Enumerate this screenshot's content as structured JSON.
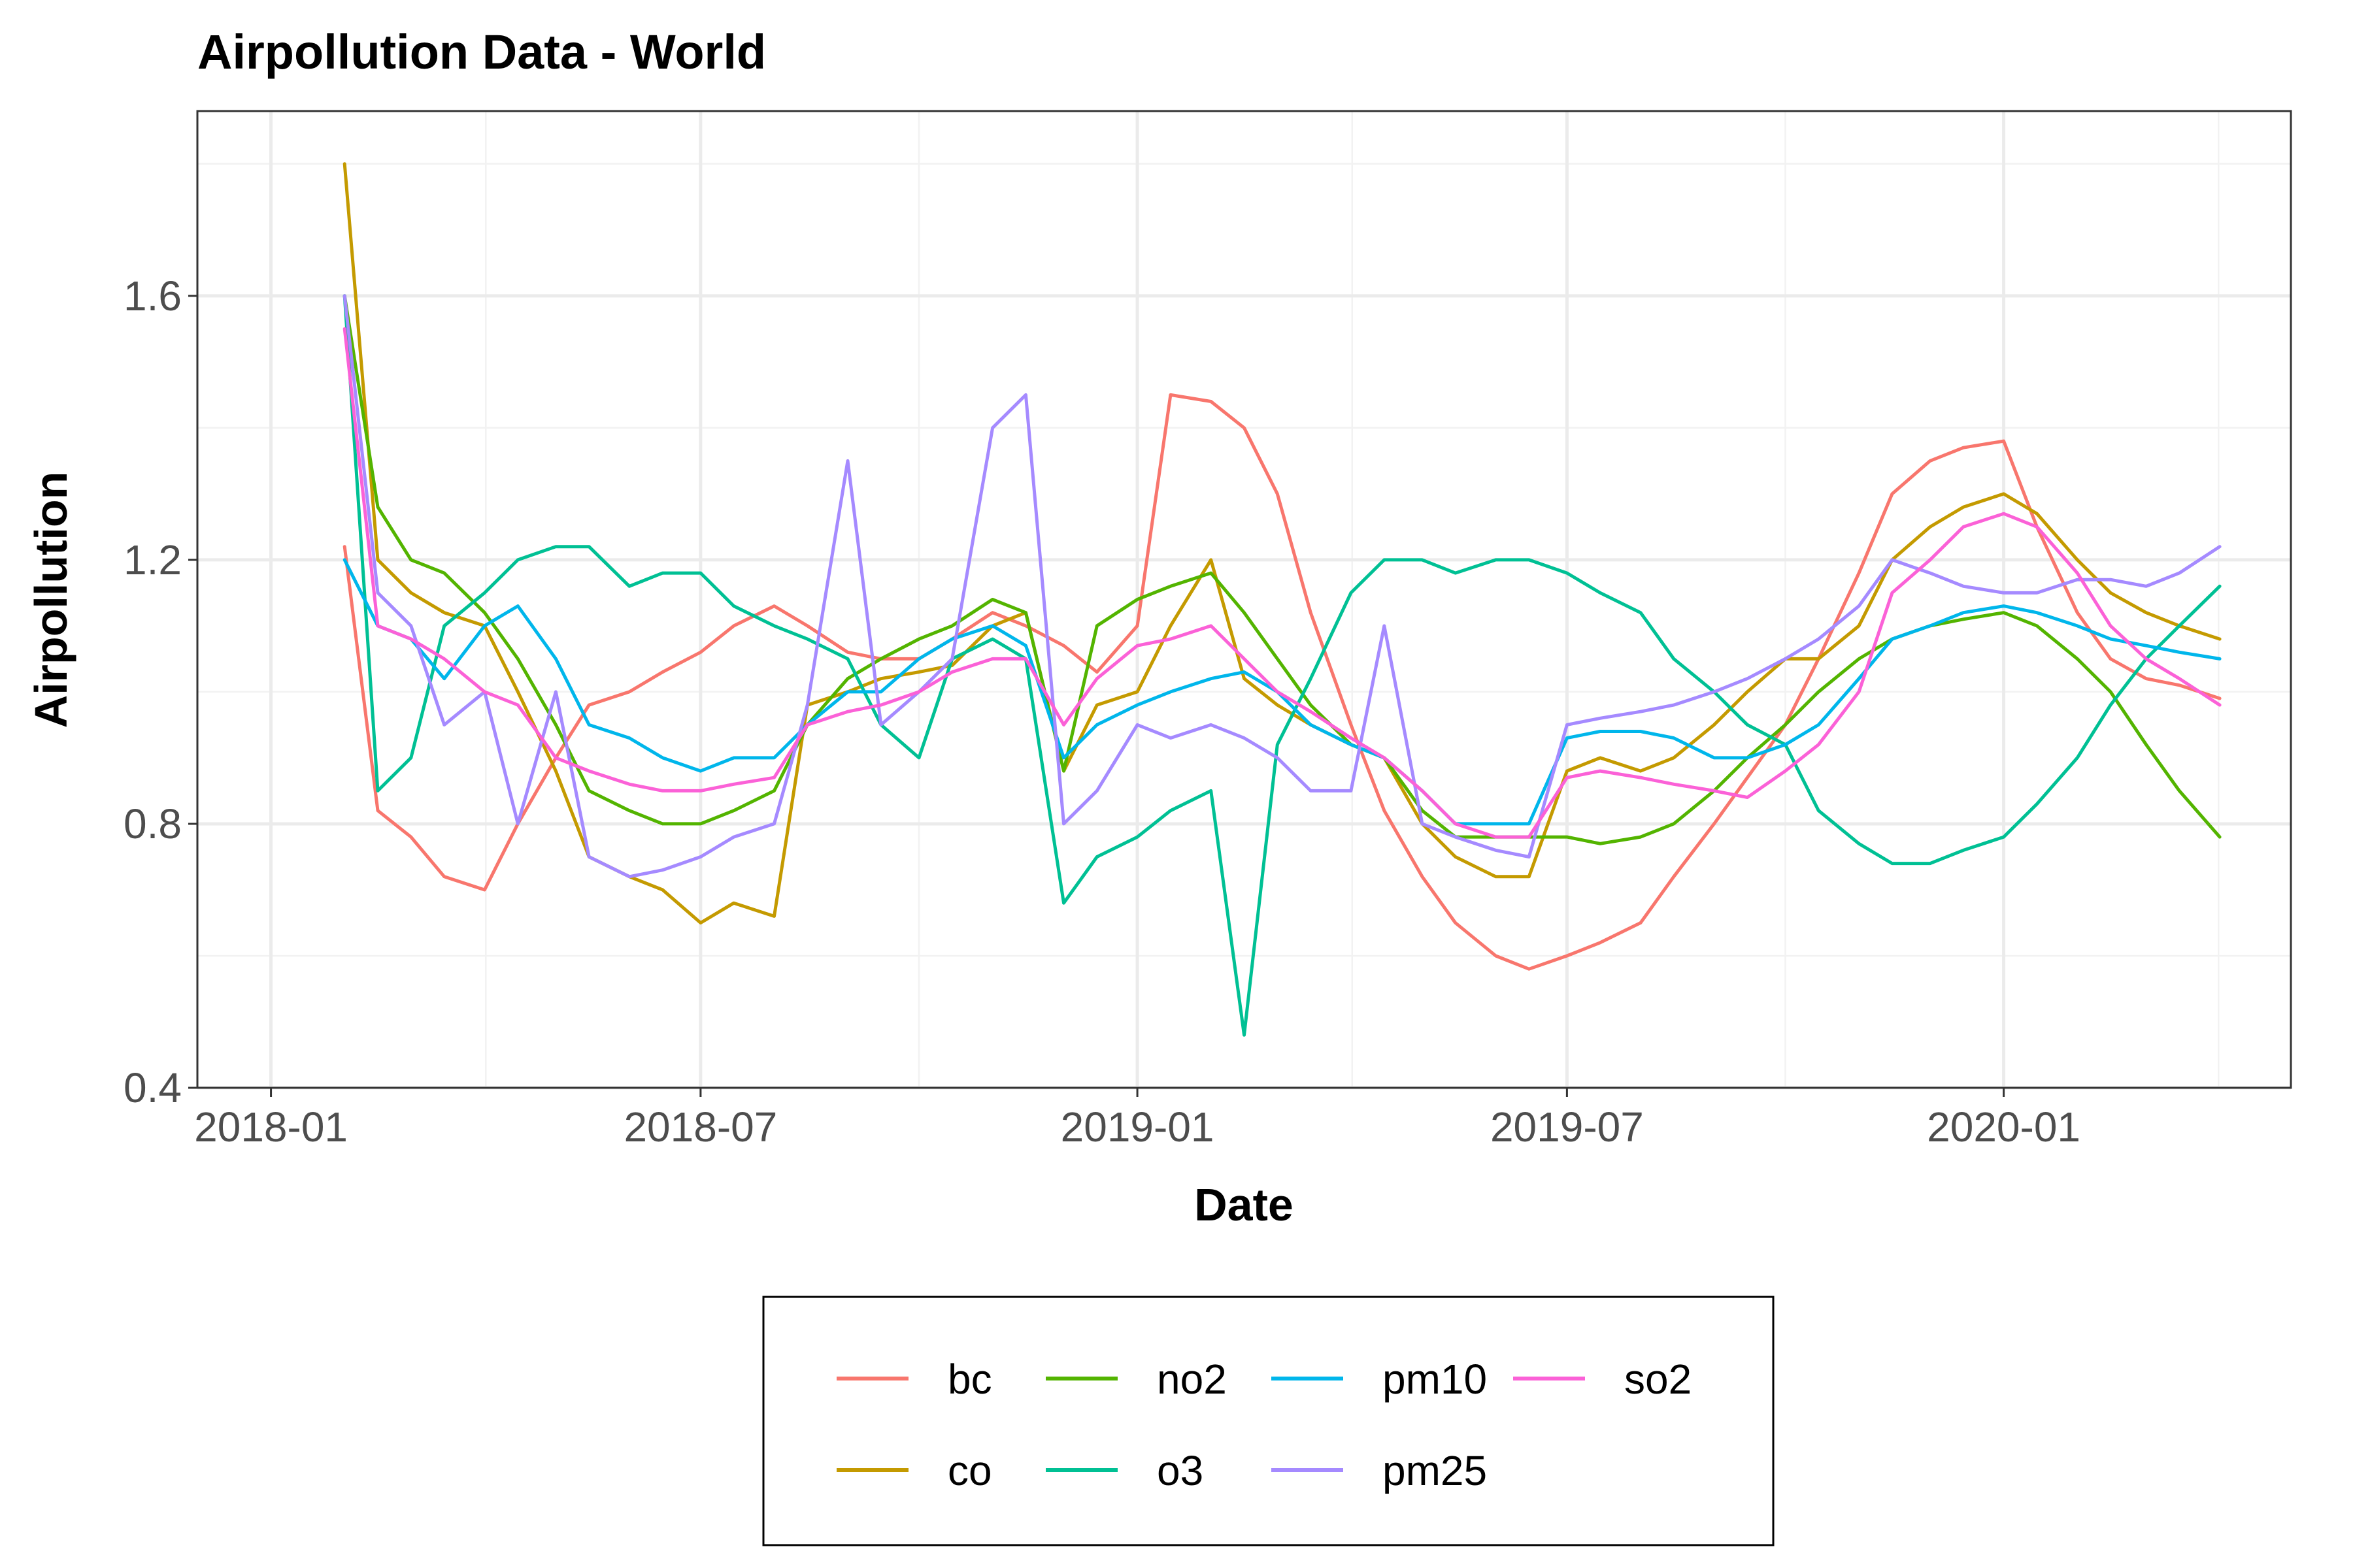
{
  "chart_data": {
    "type": "line",
    "title": "Airpollution Data - World",
    "xlabel": "Date",
    "ylabel": "Airpollution",
    "x_ticks": [
      "2018-01",
      "2018-07",
      "2019-01",
      "2019-07",
      "2020-01"
    ],
    "y_ticks": [
      "0.4",
      "0.8",
      "1.2",
      "1.6"
    ],
    "xlim": [
      "2017-12-01",
      "2020-05-01"
    ],
    "ylim": [
      0.4,
      1.88
    ],
    "grid": true,
    "legend_position": "bottom",
    "x": [
      "2018-02-01",
      "2018-02-15",
      "2018-03-01",
      "2018-03-15",
      "2018-04-01",
      "2018-04-15",
      "2018-05-01",
      "2018-05-15",
      "2018-06-01",
      "2018-06-15",
      "2018-07-01",
      "2018-07-15",
      "2018-08-01",
      "2018-08-15",
      "2018-09-01",
      "2018-09-15",
      "2018-10-01",
      "2018-10-15",
      "2018-11-01",
      "2018-11-15",
      "2018-12-01",
      "2018-12-15",
      "2019-01-01",
      "2019-01-15",
      "2019-02-01",
      "2019-02-15",
      "2019-03-01",
      "2019-03-15",
      "2019-04-01",
      "2019-04-15",
      "2019-05-01",
      "2019-05-15",
      "2019-06-01",
      "2019-06-15",
      "2019-07-01",
      "2019-07-15",
      "2019-08-01",
      "2019-08-15",
      "2019-09-01",
      "2019-09-15",
      "2019-10-01",
      "2019-10-15",
      "2019-11-01",
      "2019-11-15",
      "2019-12-01",
      "2019-12-15",
      "2020-01-01",
      "2020-01-15",
      "2020-02-01",
      "2020-02-15",
      "2020-03-01",
      "2020-03-15",
      "2020-04-01"
    ],
    "series": [
      {
        "name": "bc",
        "color": "#F8766D",
        "values": [
          1.22,
          0.82,
          0.78,
          0.72,
          0.7,
          0.8,
          0.9,
          0.98,
          1.0,
          1.03,
          1.06,
          1.1,
          1.13,
          1.1,
          1.06,
          1.05,
          1.05,
          1.08,
          1.12,
          1.1,
          1.07,
          1.03,
          1.1,
          1.45,
          1.44,
          1.4,
          1.3,
          1.12,
          0.95,
          0.82,
          0.72,
          0.65,
          0.6,
          0.58,
          0.6,
          0.62,
          0.65,
          0.72,
          0.8,
          0.87,
          0.95,
          1.05,
          1.18,
          1.3,
          1.35,
          1.37,
          1.38,
          1.25,
          1.12,
          1.05,
          1.02,
          1.01,
          0.99
        ]
      },
      {
        "name": "co",
        "color": "#C49A00",
        "values": [
          1.8,
          1.2,
          1.15,
          1.12,
          1.1,
          1.0,
          0.88,
          0.75,
          0.72,
          0.7,
          0.65,
          0.68,
          0.66,
          0.98,
          1.0,
          1.02,
          1.03,
          1.04,
          1.1,
          1.12,
          0.88,
          0.98,
          1.0,
          1.1,
          1.2,
          1.02,
          0.98,
          0.95,
          0.92,
          0.9,
          0.8,
          0.75,
          0.72,
          0.72,
          0.88,
          0.9,
          0.88,
          0.9,
          0.95,
          1.0,
          1.05,
          1.05,
          1.1,
          1.2,
          1.25,
          1.28,
          1.3,
          1.27,
          1.2,
          1.15,
          1.12,
          1.1,
          1.08
        ]
      },
      {
        "name": "no2",
        "color": "#53B400",
        "values": [
          1.6,
          1.28,
          1.2,
          1.18,
          1.12,
          1.05,
          0.95,
          0.85,
          0.82,
          0.8,
          0.8,
          0.82,
          0.85,
          0.95,
          1.02,
          1.05,
          1.08,
          1.1,
          1.14,
          1.12,
          0.88,
          1.1,
          1.14,
          1.16,
          1.18,
          1.12,
          1.05,
          0.98,
          0.92,
          0.9,
          0.82,
          0.78,
          0.78,
          0.78,
          0.78,
          0.77,
          0.78,
          0.8,
          0.85,
          0.9,
          0.95,
          1.0,
          1.05,
          1.08,
          1.1,
          1.11,
          1.12,
          1.1,
          1.05,
          1.0,
          0.92,
          0.85,
          0.78
        ]
      },
      {
        "name": "o3",
        "color": "#00C094",
        "values": [
          1.6,
          0.85,
          0.9,
          1.1,
          1.15,
          1.2,
          1.22,
          1.22,
          1.16,
          1.18,
          1.18,
          1.13,
          1.1,
          1.08,
          1.05,
          0.95,
          0.9,
          1.05,
          1.08,
          1.05,
          0.68,
          0.75,
          0.78,
          0.82,
          0.85,
          0.48,
          0.92,
          1.02,
          1.15,
          1.2,
          1.2,
          1.18,
          1.2,
          1.2,
          1.18,
          1.15,
          1.12,
          1.05,
          1.0,
          0.95,
          0.92,
          0.82,
          0.77,
          0.74,
          0.74,
          0.76,
          0.78,
          0.83,
          0.9,
          0.98,
          1.05,
          1.1,
          1.16
        ]
      },
      {
        "name": "pm10",
        "color": "#00B6EB",
        "values": [
          1.2,
          1.1,
          1.08,
          1.02,
          1.1,
          1.13,
          1.05,
          0.95,
          0.93,
          0.9,
          0.88,
          0.9,
          0.9,
          0.95,
          1.0,
          1.0,
          1.05,
          1.08,
          1.1,
          1.07,
          0.9,
          0.95,
          0.98,
          1.0,
          1.02,
          1.03,
          1.0,
          0.95,
          0.92,
          0.9,
          0.85,
          0.8,
          0.8,
          0.8,
          0.93,
          0.94,
          0.94,
          0.93,
          0.9,
          0.9,
          0.92,
          0.95,
          1.02,
          1.08,
          1.1,
          1.12,
          1.13,
          1.12,
          1.1,
          1.08,
          1.07,
          1.06,
          1.05
        ]
      },
      {
        "name": "pm25",
        "color": "#A58AFF",
        "values": [
          1.6,
          1.15,
          1.1,
          0.95,
          1.0,
          0.8,
          1.0,
          0.75,
          0.72,
          0.73,
          0.75,
          0.78,
          0.8,
          0.98,
          1.35,
          0.95,
          1.0,
          1.05,
          1.4,
          1.45,
          0.8,
          0.85,
          0.95,
          0.93,
          0.95,
          0.93,
          0.9,
          0.85,
          0.85,
          1.1,
          0.8,
          0.78,
          0.76,
          0.75,
          0.95,
          0.96,
          0.97,
          0.98,
          1.0,
          1.02,
          1.05,
          1.08,
          1.13,
          1.2,
          1.18,
          1.16,
          1.15,
          1.15,
          1.17,
          1.17,
          1.16,
          1.18,
          1.22
        ]
      },
      {
        "name": "so2",
        "color": "#FB61D7",
        "values": [
          1.55,
          1.1,
          1.08,
          1.05,
          1.0,
          0.98,
          0.9,
          0.88,
          0.86,
          0.85,
          0.85,
          0.86,
          0.87,
          0.95,
          0.97,
          0.98,
          1.0,
          1.03,
          1.05,
          1.05,
          0.95,
          1.02,
          1.07,
          1.08,
          1.1,
          1.05,
          1.0,
          0.97,
          0.93,
          0.9,
          0.85,
          0.8,
          0.78,
          0.78,
          0.87,
          0.88,
          0.87,
          0.86,
          0.85,
          0.84,
          0.88,
          0.92,
          1.0,
          1.15,
          1.2,
          1.25,
          1.27,
          1.25,
          1.18,
          1.1,
          1.05,
          1.02,
          0.98
        ]
      }
    ]
  }
}
